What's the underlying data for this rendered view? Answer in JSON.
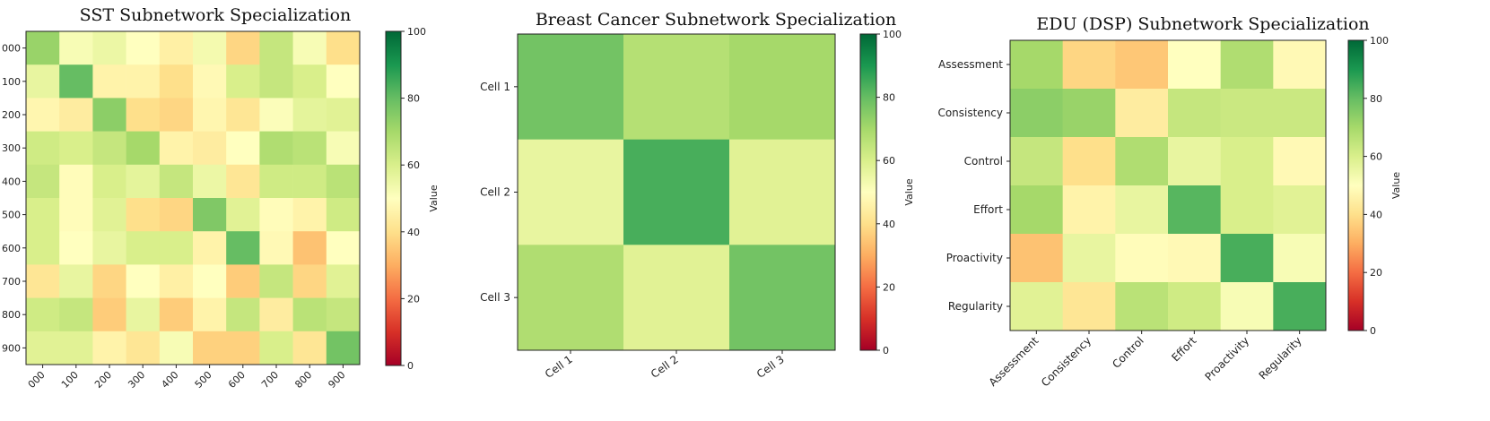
{
  "chart_data": [
    {
      "type": "heatmap",
      "title": "SST Subnetwork Specialization",
      "row_labels": [
        "000",
        "100",
        "200",
        "300",
        "400",
        "500",
        "600",
        "700",
        "800",
        "900"
      ],
      "col_labels": [
        "000",
        "100",
        "200",
        "300",
        "400",
        "500",
        "600",
        "700",
        "800",
        "900"
      ],
      "values": [
        [
          72,
          52,
          55,
          50,
          45,
          53,
          38,
          64,
          52,
          40
        ],
        [
          56,
          80,
          46,
          46,
          40,
          48,
          60,
          64,
          60,
          50
        ],
        [
          47,
          44,
          74,
          40,
          38,
          47,
          42,
          51,
          57,
          58
        ],
        [
          62,
          60,
          64,
          70,
          46,
          44,
          50,
          68,
          66,
          52
        ],
        [
          64,
          49,
          60,
          57,
          64,
          55,
          42,
          62,
          62,
          66
        ],
        [
          60,
          49,
          58,
          40,
          38,
          76,
          58,
          49,
          46,
          62
        ],
        [
          60,
          50,
          56,
          60,
          60,
          46,
          80,
          48,
          34,
          50
        ],
        [
          42,
          56,
          38,
          50,
          45,
          50,
          36,
          64,
          38,
          58
        ],
        [
          62,
          64,
          36,
          56,
          36,
          46,
          64,
          44,
          66,
          64
        ],
        [
          58,
          58,
          46,
          42,
          52,
          37,
          37,
          60,
          42,
          78
        ]
      ],
      "colorbar": {
        "label": "Value",
        "min": 0,
        "max": 100,
        "ticks": [
          0,
          20,
          40,
          60,
          80,
          100
        ]
      }
    },
    {
      "type": "heatmap",
      "title": "Breast Cancer Subnetwork Specialization",
      "row_labels": [
        "Cell 1",
        "Cell 2",
        "Cell 3"
      ],
      "col_labels": [
        "Cell 1",
        "Cell 2",
        "Cell 3"
      ],
      "values": [
        [
          78,
          67,
          70
        ],
        [
          56,
          84,
          58
        ],
        [
          68,
          58,
          78
        ]
      ],
      "colorbar": {
        "label": "Value",
        "min": 0,
        "max": 100,
        "ticks": [
          0,
          20,
          40,
          60,
          80,
          100
        ]
      }
    },
    {
      "type": "heatmap",
      "title": "EDU (DSP) Subnetwork Specialization",
      "row_labels": [
        "Assessment",
        "Consistency",
        "Control",
        "Effort",
        "Proactivity",
        "Regularity"
      ],
      "col_labels": [
        "Assessment",
        "Consistency",
        "Control",
        "Effort",
        "Proactivity",
        "Regularity"
      ],
      "values": [
        [
          70,
          38,
          35,
          50,
          68,
          48
        ],
        [
          74,
          72,
          44,
          64,
          63,
          63
        ],
        [
          64,
          40,
          68,
          56,
          60,
          48
        ],
        [
          70,
          46,
          56,
          82,
          60,
          58
        ],
        [
          34,
          56,
          49,
          48,
          84,
          52
        ],
        [
          58,
          42,
          66,
          62,
          52,
          84
        ]
      ],
      "colorbar": {
        "label": "Value",
        "min": 0,
        "max": 100,
        "ticks": [
          0,
          20,
          40,
          60,
          80,
          100
        ]
      }
    }
  ]
}
